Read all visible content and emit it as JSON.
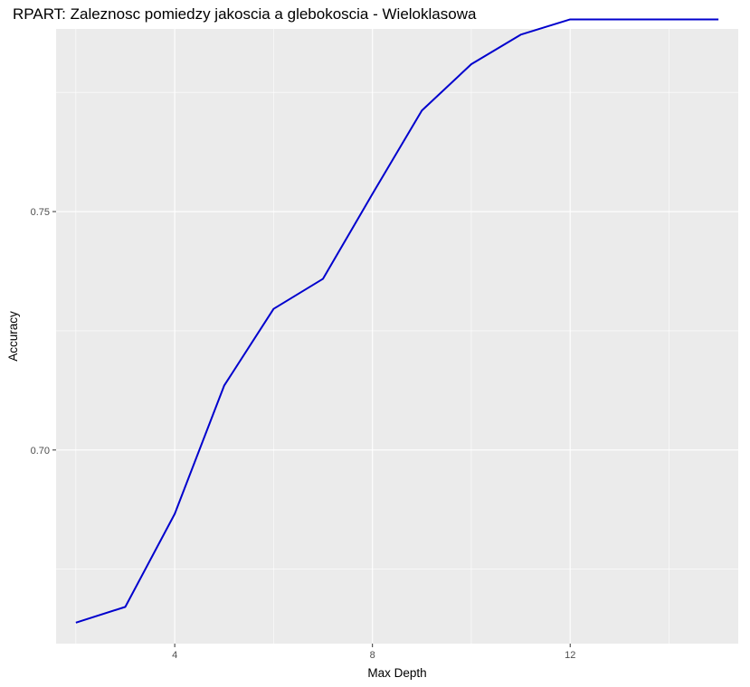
{
  "chart_data": {
    "type": "line",
    "title": "RPART: Zaleznosc pomiedzy jakoscia a glebokoscia - Wieloklasowa",
    "xlabel": "Max Depth",
    "ylabel": "Accuracy",
    "xlim": [
      1.6,
      15.4
    ],
    "ylim": [
      0.6594,
      0.7883
    ],
    "x_ticks": [
      4,
      8,
      12
    ],
    "x_tick_labels": [
      "4",
      "8",
      "12"
    ],
    "y_ticks": [
      0.7,
      0.75
    ],
    "y_tick_labels": [
      "0.70",
      "0.75"
    ],
    "grid": true,
    "legend": "none",
    "panel_background": "#ebebeb",
    "grid_color": "#ffffff",
    "line_color": "#0000cd",
    "series": [
      {
        "x": [
          2,
          3,
          4,
          5,
          6,
          7,
          8,
          9,
          10,
          11,
          12,
          13,
          14,
          15
        ],
        "values": [
          0.6638,
          0.6671,
          0.6866,
          0.7135,
          0.7296,
          0.7359,
          0.7537,
          0.7712,
          0.7809,
          0.7871,
          0.7903,
          0.7903,
          0.7903,
          0.7903
        ]
      }
    ]
  }
}
